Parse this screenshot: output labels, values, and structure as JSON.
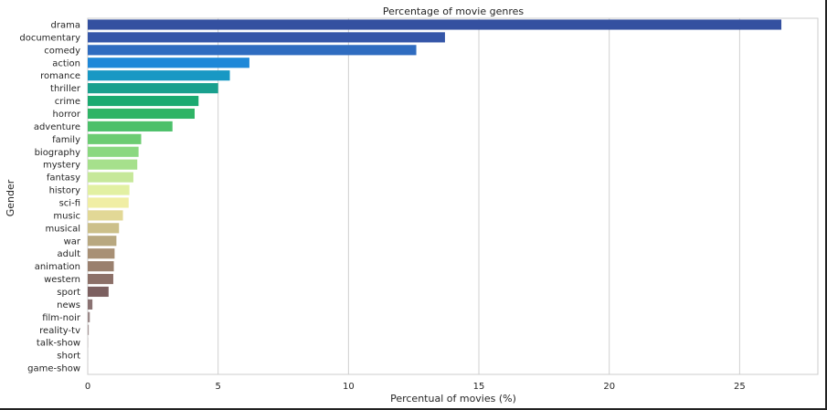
{
  "chart_data": {
    "type": "bar",
    "orientation": "horizontal",
    "title": "Percentage of movie genres",
    "xlabel": "Percentual of movies (%)",
    "ylabel": "Gender",
    "xlim": [
      0,
      28
    ],
    "xticks": [
      0,
      5,
      10,
      15,
      20,
      25
    ],
    "grid": "vertical",
    "categories": [
      "drama",
      "documentary",
      "comedy",
      "action",
      "romance",
      "thriller",
      "crime",
      "horror",
      "adventure",
      "family",
      "biography",
      "mystery",
      "fantasy",
      "history",
      "sci-fi",
      "music",
      "musical",
      "war",
      "adult",
      "animation",
      "western",
      "sport",
      "news",
      "film-noir",
      "reality-tv",
      "talk-show",
      "short",
      "game-show"
    ],
    "values": [
      26.6,
      13.7,
      12.6,
      6.2,
      5.45,
      5.0,
      4.25,
      4.1,
      3.25,
      2.05,
      1.95,
      1.9,
      1.75,
      1.6,
      1.57,
      1.35,
      1.2,
      1.1,
      1.03,
      1.0,
      0.98,
      0.8,
      0.18,
      0.08,
      0.04,
      0.01,
      0.005,
      0.002
    ],
    "colors": [
      "#3450a0",
      "#3556a8",
      "#2f6cc0",
      "#1f88d8",
      "#1898c4",
      "#1aa08e",
      "#1aaa70",
      "#2fb466",
      "#4cc06a",
      "#6ccc72",
      "#8ad880",
      "#a6e08c",
      "#c6e89a",
      "#e2f0a2",
      "#f0eea4",
      "#e2d896",
      "#ccc08a",
      "#b8a880",
      "#a89075",
      "#9a806e",
      "#8c7068",
      "#7c6060",
      "#8a7272",
      "#9a8888",
      "#a89898",
      "#b4a8a8",
      "#bcb0b0",
      "#c4b8b8"
    ]
  }
}
